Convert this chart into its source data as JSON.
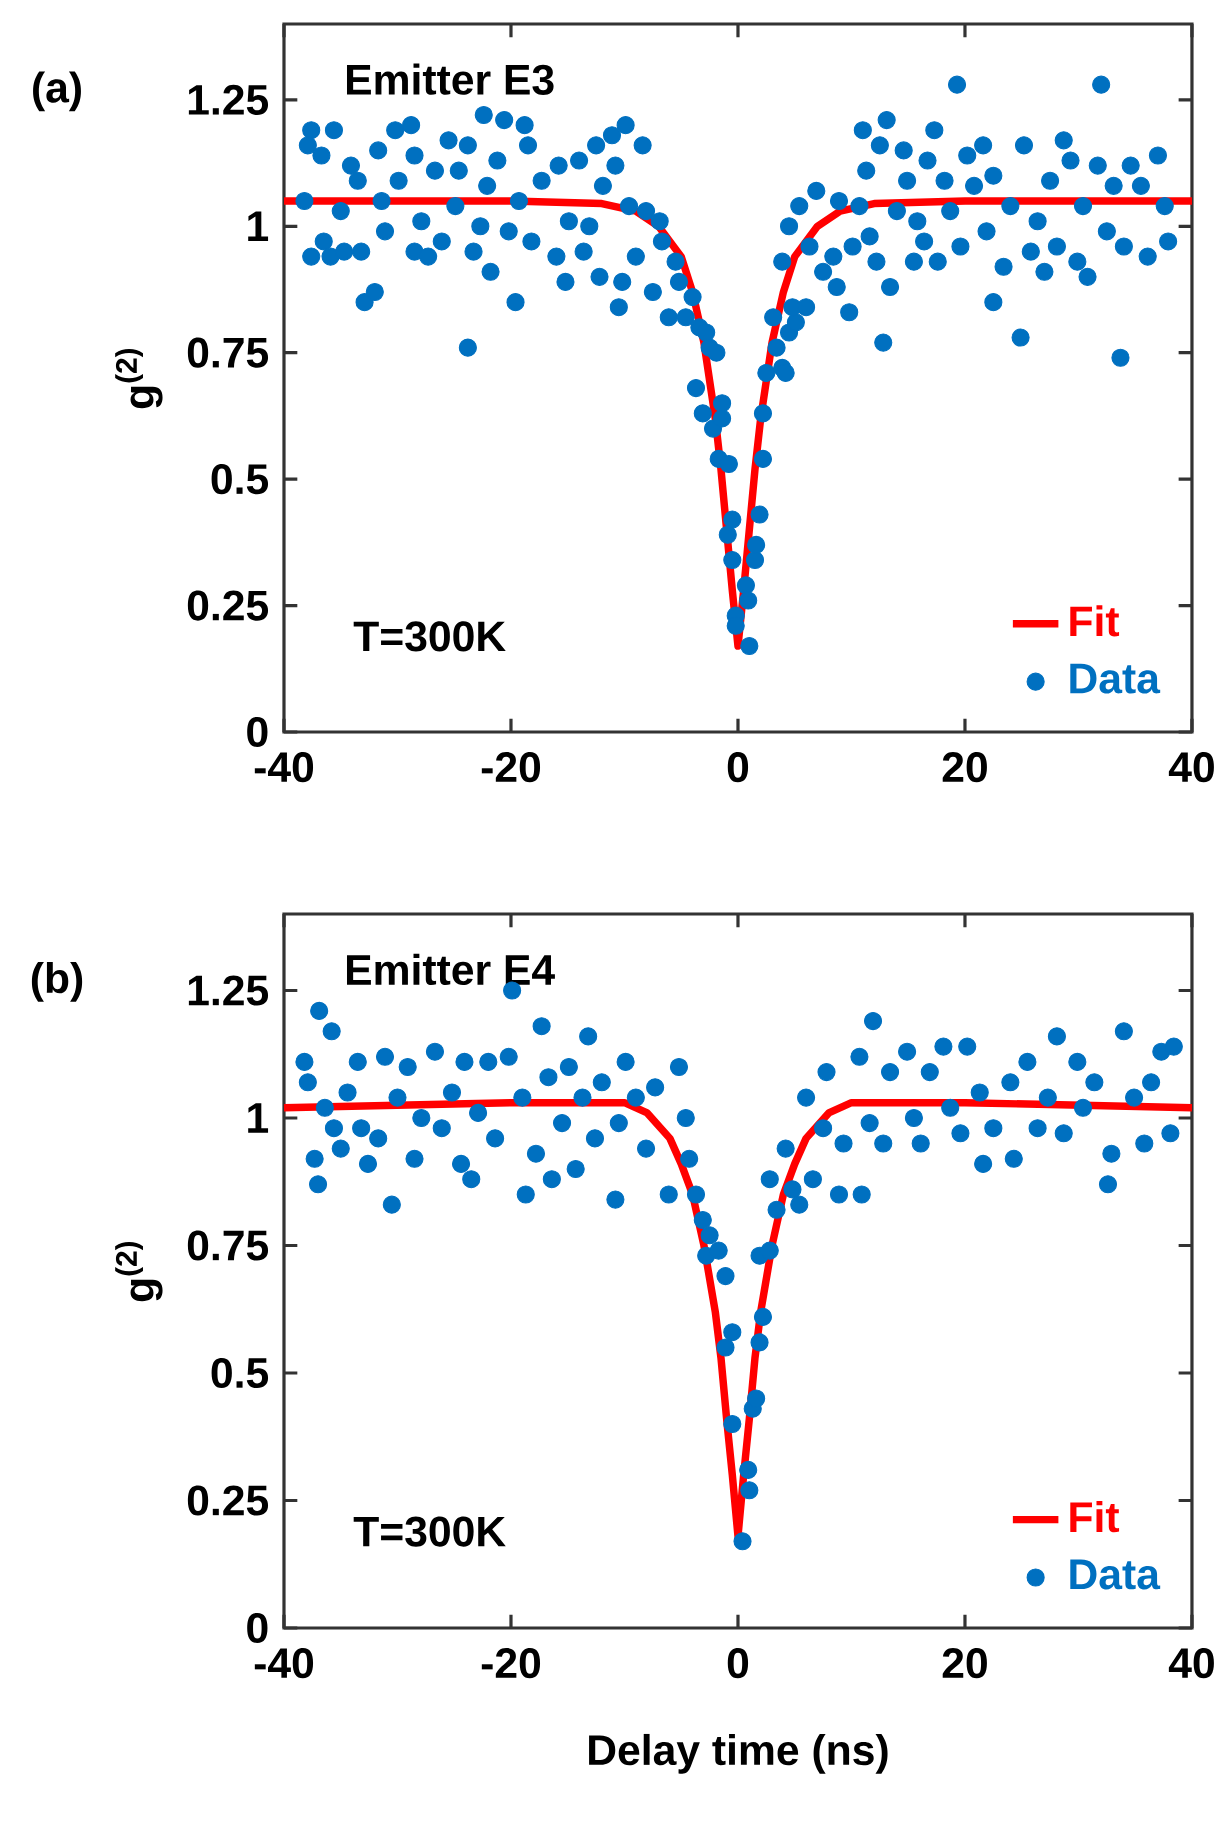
{
  "chart_data": [
    {
      "type": "scatter",
      "annotations": [
        "(a)",
        "Emitter E3",
        "T=300K"
      ],
      "ylabel": "g$^{(2)}$",
      "xlim": [
        -40,
        40
      ],
      "xticks": [
        -40,
        -20,
        0,
        20,
        40
      ],
      "ylim": [
        0,
        1.4
      ],
      "yticks": [
        0,
        0.25,
        0.5,
        0.75,
        1,
        1.25
      ],
      "legend": "bottom right",
      "grid": false,
      "series": [
        {
          "name": "Fit",
          "type": "line",
          "color": "#ff0000",
          "marker": "none",
          "line_style": "solid",
          "x": [
            -40,
            -20,
            -12,
            -9,
            -7,
            -5,
            -4,
            -3,
            -2,
            -1.5,
            -1,
            -0.5,
            0,
            0.5,
            1,
            1.5,
            2,
            3,
            4,
            5,
            7,
            9,
            12,
            20,
            40
          ],
          "values": [
            1.05,
            1.05,
            1.045,
            1.03,
            1.0,
            0.94,
            0.87,
            0.77,
            0.62,
            0.52,
            0.4,
            0.28,
            0.17,
            0.28,
            0.4,
            0.52,
            0.62,
            0.77,
            0.87,
            0.94,
            1.0,
            1.03,
            1.045,
            1.05,
            1.05
          ]
        },
        {
          "name": "Data",
          "color": "#0070c0",
          "marker": "circle",
          "x": [
            -38.2,
            -37.6,
            -37.9,
            -37.6,
            -36.7,
            -36.5,
            -35.9,
            -35.6,
            -35.0,
            -34.7,
            -34.1,
            -33.5,
            -33.2,
            -32.9,
            -32.0,
            -31.7,
            -31.4,
            -31.1,
            -30.2,
            -29.9,
            -28.8,
            -28.5,
            -28.5,
            -27.9,
            -27.3,
            -26.7,
            -26.1,
            -25.5,
            -24.9,
            -24.6,
            -23.8,
            -23.8,
            -23.3,
            -22.7,
            -22.4,
            -22.1,
            -21.8,
            -21.2,
            -20.6,
            -20.2,
            -19.6,
            -19.3,
            -18.8,
            -18.5,
            -18.2,
            -17.3,
            -16.0,
            -15.8,
            -15.2,
            -14.9,
            -14.0,
            -13.6,
            -13.1,
            -12.5,
            -12.2,
            -11.9,
            -11.1,
            -10.8,
            -10.5,
            -10.2,
            -9.9,
            -9.6,
            -9.0,
            -8.4,
            -8.1,
            -7.5,
            -6.9,
            -6.7,
            -6.1,
            -5.5,
            -5.2,
            -4.6,
            -4.0,
            -3.4,
            -2.8,
            -2.5,
            -1.9,
            -3.7,
            -3.1,
            -2.2,
            -1.4,
            -1.4,
            -1.7,
            -0.8,
            -0.5,
            -0.9,
            -0.5,
            -0.2,
            -0.2,
            0.7,
            1.0,
            0.9,
            1.5,
            1.6,
            1.9,
            2.2,
            2.2,
            2.5,
            3.1,
            3.4,
            3.9,
            4.2,
            4.5,
            5.1,
            4.8,
            3.9,
            4.5,
            5.4,
            6.0,
            6.3,
            6.9,
            7.5,
            8.4,
            8.7,
            8.9,
            9.8,
            10.1,
            10.7,
            11.0,
            11.3,
            11.6,
            12.2,
            12.5,
            12.8,
            13.1,
            13.4,
            14.0,
            14.6,
            14.9,
            15.5,
            15.8,
            16.4,
            16.7,
            17.3,
            17.6,
            18.2,
            18.7,
            19.3,
            19.6,
            20.2,
            20.8,
            21.6,
            21.9,
            22.5,
            22.5,
            23.4,
            24.0,
            24.9,
            25.2,
            25.8,
            26.4,
            27.0,
            27.5,
            28.1,
            28.7,
            29.3,
            29.9,
            30.4,
            30.8,
            31.7,
            32.0,
            32.5,
            33.1,
            33.7,
            34.0,
            34.6,
            35.5,
            36.1,
            37.0,
            37.6,
            37.9
          ],
          "values": [
            1.05,
            1.19,
            1.16,
            0.94,
            1.14,
            0.97,
            0.94,
            1.19,
            1.03,
            0.95,
            1.12,
            1.09,
            0.95,
            0.85,
            0.87,
            1.15,
            1.05,
            0.99,
            1.19,
            1.09,
            1.2,
            1.14,
            0.95,
            1.01,
            0.94,
            1.11,
            0.97,
            1.17,
            1.04,
            1.11,
            1.16,
            0.76,
            0.95,
            1.0,
            1.22,
            1.08,
            0.91,
            1.13,
            1.21,
            0.99,
            0.85,
            1.05,
            1.2,
            1.16,
            0.97,
            1.09,
            0.94,
            1.12,
            0.89,
            1.01,
            1.13,
            0.95,
            1.0,
            1.16,
            0.9,
            1.08,
            1.18,
            1.12,
            0.84,
            0.89,
            1.2,
            1.04,
            0.94,
            1.16,
            1.03,
            0.87,
            1.01,
            0.97,
            0.82,
            0.93,
            0.89,
            0.82,
            0.86,
            0.8,
            0.79,
            0.76,
            0.75,
            0.68,
            0.63,
            0.6,
            0.65,
            0.62,
            0.54,
            0.53,
            0.42,
            0.39,
            0.34,
            0.23,
            0.21,
            0.29,
            0.17,
            0.26,
            0.34,
            0.37,
            0.43,
            0.54,
            0.63,
            0.71,
            0.82,
            0.76,
            0.72,
            0.71,
            0.79,
            0.81,
            0.84,
            0.93,
            1.0,
            1.04,
            0.84,
            0.96,
            1.07,
            0.91,
            0.94,
            0.88,
            1.05,
            0.83,
            0.96,
            1.04,
            1.19,
            1.11,
            0.98,
            0.93,
            1.16,
            0.77,
            1.21,
            0.88,
            1.03,
            1.15,
            1.09,
            0.93,
            1.01,
            0.97,
            1.13,
            1.19,
            0.93,
            1.09,
            1.03,
            1.28,
            0.96,
            1.14,
            1.08,
            1.16,
            0.99,
            0.85,
            1.1,
            0.92,
            1.04,
            0.78,
            1.16,
            0.95,
            1.01,
            0.91,
            1.09,
            0.96,
            1.17,
            1.13,
            0.93,
            1.04,
            0.9,
            1.12,
            1.28,
            0.99,
            1.08,
            0.74,
            0.96,
            1.12,
            1.08,
            0.94,
            1.14,
            1.04,
            0.97
          ]
        }
      ]
    },
    {
      "type": "scatter",
      "annotations": [
        "(b)",
        "Emitter E4",
        "T=300K"
      ],
      "xlabel": "Delay time (ns)",
      "ylabel": "g$^{(2)}$",
      "xlim": [
        -40,
        40
      ],
      "xticks": [
        -40,
        -20,
        0,
        20,
        40
      ],
      "ylim": [
        0,
        1.4
      ],
      "yticks": [
        0,
        0.25,
        0.5,
        0.75,
        1,
        1.25
      ],
      "legend": "bottom right",
      "grid": false,
      "series": [
        {
          "name": "Fit",
          "type": "line",
          "color": "#ff0000",
          "marker": "none",
          "line_style": "solid",
          "x": [
            -40,
            -20,
            -10,
            -8,
            -6,
            -5,
            -4,
            -3,
            -2,
            -1.5,
            -1,
            -0.5,
            0,
            0.5,
            1,
            1.5,
            2,
            3,
            4,
            5,
            6,
            8,
            10,
            20,
            40
          ],
          "values": [
            1.02,
            1.03,
            1.03,
            1.01,
            0.96,
            0.91,
            0.85,
            0.75,
            0.62,
            0.53,
            0.41,
            0.3,
            0.18,
            0.3,
            0.41,
            0.53,
            0.62,
            0.75,
            0.85,
            0.91,
            0.96,
            1.01,
            1.03,
            1.03,
            1.02
          ]
        },
        {
          "name": "Data",
          "color": "#0070c0",
          "marker": "circle",
          "x": [
            -38.2,
            -37.9,
            -37.3,
            -37.0,
            -36.9,
            -36.4,
            -35.8,
            -35.6,
            -35.0,
            -34.4,
            -33.5,
            -33.2,
            -32.6,
            -31.7,
            -31.1,
            -30.5,
            -30.0,
            -29.1,
            -28.5,
            -27.9,
            -26.7,
            -26.1,
            -25.2,
            -24.4,
            -24.1,
            -23.5,
            -22.9,
            -22.0,
            -21.4,
            -20.2,
            -19.9,
            -19.0,
            -18.7,
            -17.8,
            -17.3,
            -16.7,
            -16.4,
            -15.5,
            -14.9,
            -14.3,
            -13.7,
            -13.2,
            -12.6,
            -12.0,
            -10.8,
            -10.5,
            -9.9,
            -9.0,
            -8.1,
            -7.3,
            -6.1,
            -5.2,
            -4.6,
            -4.3,
            -3.7,
            -3.1,
            -2.5,
            -2.8,
            -1.1,
            -1.7,
            -0.5,
            -1.1,
            -0.5,
            1.0,
            0.9,
            0.4,
            1.3,
            1.6,
            1.9,
            2.2,
            1.9,
            2.8,
            2.8,
            3.4,
            4.2,
            4.8,
            5.4,
            6.0,
            6.6,
            7.5,
            7.8,
            8.9,
            9.3,
            10.7,
            10.9,
            11.6,
            11.9,
            12.8,
            13.4,
            14.9,
            15.5,
            16.1,
            16.9,
            18.1,
            18.7,
            19.6,
            20.2,
            21.3,
            21.6,
            22.5,
            24.0,
            24.3,
            25.5,
            26.4,
            27.3,
            28.1,
            28.7,
            29.9,
            30.4,
            31.4,
            32.6,
            32.9,
            34.0,
            34.9,
            35.8,
            36.4,
            37.3,
            38.1,
            38.4
          ],
          "values": [
            1.11,
            1.07,
            0.92,
            0.87,
            1.21,
            1.02,
            1.17,
            0.98,
            0.94,
            1.05,
            1.11,
            0.98,
            0.91,
            0.96,
            1.12,
            0.83,
            1.04,
            1.1,
            0.92,
            1.0,
            1.13,
            0.98,
            1.05,
            0.91,
            1.11,
            0.88,
            1.01,
            1.11,
            0.96,
            1.12,
            1.25,
            1.04,
            0.85,
            0.93,
            1.18,
            1.08,
            0.88,
            0.99,
            1.1,
            0.9,
            1.04,
            1.16,
            0.96,
            1.07,
            0.84,
            0.99,
            1.11,
            1.04,
            0.94,
            1.06,
            0.85,
            1.1,
            1.0,
            0.92,
            0.85,
            0.8,
            0.77,
            0.73,
            0.69,
            0.74,
            0.58,
            0.55,
            0.4,
            0.27,
            0.31,
            0.17,
            0.43,
            0.45,
            0.56,
            0.61,
            0.73,
            0.74,
            0.88,
            0.82,
            0.94,
            0.86,
            0.83,
            1.04,
            0.88,
            0.98,
            1.09,
            0.85,
            0.95,
            1.12,
            0.85,
            0.99,
            1.19,
            0.95,
            1.09,
            1.13,
            1.0,
            0.95,
            1.09,
            1.14,
            1.02,
            0.97,
            1.14,
            1.05,
            0.91,
            0.98,
            1.07,
            0.92,
            1.11,
            0.98,
            1.04,
            1.16,
            0.97,
            1.11,
            1.02,
            1.07,
            0.87,
            0.93,
            1.17,
            1.04,
            0.95,
            1.07,
            1.13,
            0.97,
            1.14
          ]
        }
      ]
    }
  ]
}
